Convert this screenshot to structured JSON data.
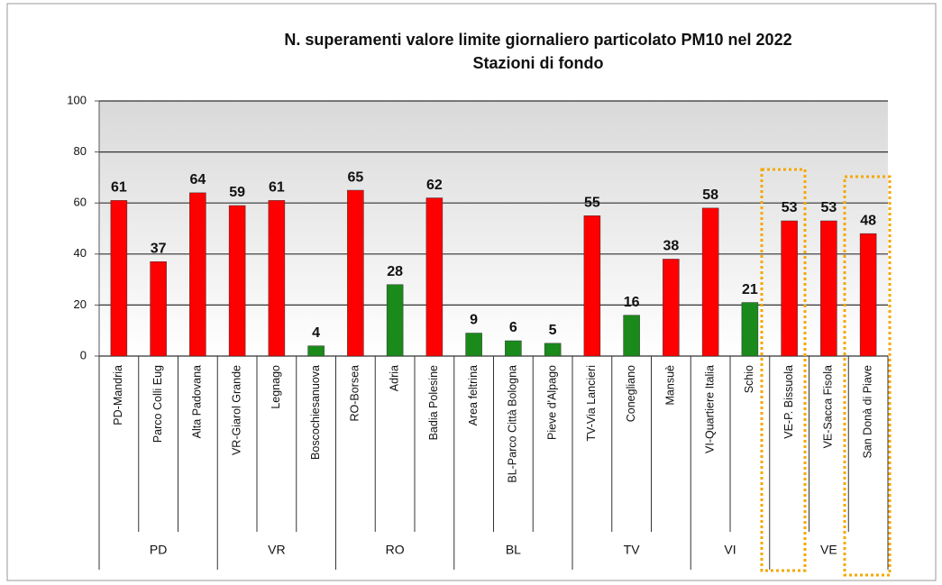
{
  "chart_data": {
    "type": "bar",
    "title": "N. superamenti valore limite giornaliero particolato PM10 nel 2022",
    "subtitle": "Stazioni di fondo",
    "categories": [
      "PD-Mandria",
      "Parco Colli Eug",
      "Alta Padovana",
      "VR-Giarol Grande",
      "Legnago",
      "Boscochiesanuova",
      "RO-Borsea",
      "Adria",
      "Badia Polesine",
      "Area feltrina",
      "BL-Parco Città Bologna",
      "Pieve d'Alpago",
      "TV-Via Lancieri",
      "Conegliano",
      "Mansuè",
      "VI-Quartiere Italia",
      "Schio",
      "VE-P. Bissuola",
      "VE-Sacca Fisola",
      "San Donà di Piave"
    ],
    "groups": [
      "PD",
      null,
      null,
      "VR",
      null,
      null,
      "RO",
      null,
      null,
      "BL",
      null,
      null,
      "TV",
      null,
      null,
      "VI",
      null,
      "VE",
      null,
      null
    ],
    "values": [
      61,
      37,
      64,
      59,
      61,
      4,
      65,
      28,
      62,
      9,
      6,
      5,
      55,
      16,
      38,
      58,
      21,
      53,
      53,
      48
    ],
    "colors": [
      "#ff0000",
      "#ff0000",
      "#ff0000",
      "#ff0000",
      "#ff0000",
      "#1a8a1a",
      "#ff0000",
      "#1a8a1a",
      "#ff0000",
      "#1a8a1a",
      "#1a8a1a",
      "#1a8a1a",
      "#ff0000",
      "#1a8a1a",
      "#ff0000",
      "#ff0000",
      "#1a8a1a",
      "#ff0000",
      "#ff0000",
      "#ff0000"
    ],
    "ylim": [
      0,
      100
    ],
    "yticks": [
      0,
      20,
      40,
      60,
      80,
      100
    ],
    "grid": true
  }
}
